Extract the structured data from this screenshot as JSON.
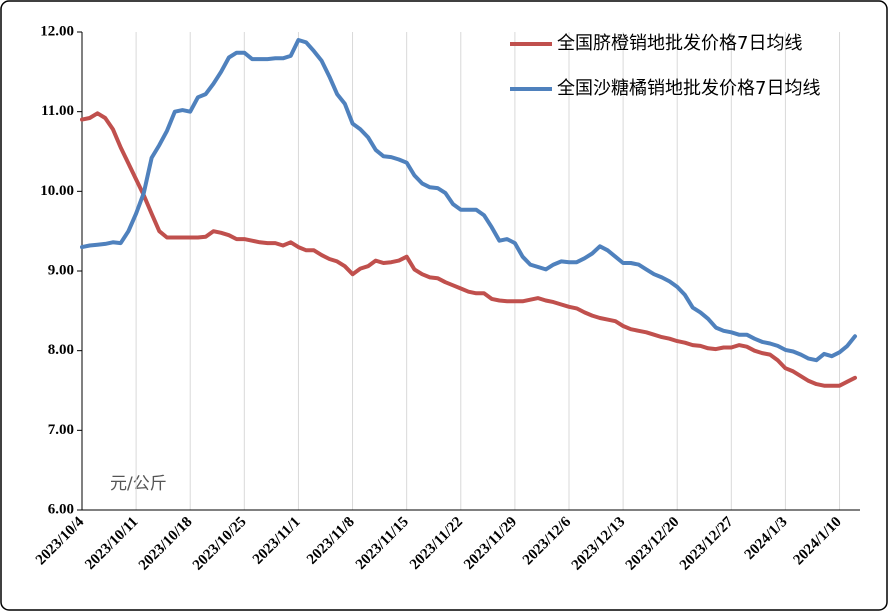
{
  "chart_data": {
    "type": "line",
    "y_annotation": "元/公斤",
    "categories": [
      "2023/10/4",
      null,
      null,
      null,
      null,
      null,
      null,
      "2023/10/11",
      null,
      null,
      null,
      null,
      null,
      null,
      "2023/10/18",
      null,
      null,
      null,
      null,
      null,
      null,
      "2023/10/25",
      null,
      null,
      null,
      null,
      null,
      null,
      "2023/11/1",
      null,
      null,
      null,
      null,
      null,
      null,
      "2023/11/8",
      null,
      null,
      null,
      null,
      null,
      null,
      "2023/11/15",
      null,
      null,
      null,
      null,
      null,
      null,
      "2023/11/22",
      null,
      null,
      null,
      null,
      null,
      null,
      "2023/11/29",
      null,
      null,
      null,
      null,
      null,
      null,
      "2023/12/6",
      null,
      null,
      null,
      null,
      null,
      null,
      "2023/12/13",
      null,
      null,
      null,
      null,
      null,
      null,
      "2023/12/20",
      null,
      null,
      null,
      null,
      null,
      null,
      "2023/12/27",
      null,
      null,
      null,
      null,
      null,
      null,
      "2024/1/3",
      null,
      null,
      null,
      null,
      null,
      null,
      "2024/1/10",
      null,
      null
    ],
    "series": [
      {
        "name": "全国脐橙销地批发价格7日均线",
        "color": "#c0504d",
        "values": [
          10.9,
          10.92,
          10.98,
          10.92,
          10.78,
          10.55,
          10.35,
          10.15,
          9.95,
          9.72,
          9.5,
          9.42,
          9.42,
          9.42,
          9.42,
          9.42,
          9.43,
          9.5,
          9.48,
          9.45,
          9.4,
          9.4,
          9.38,
          9.36,
          9.35,
          9.35,
          9.32,
          9.36,
          9.3,
          9.26,
          9.26,
          9.2,
          9.15,
          9.12,
          9.06,
          8.96,
          9.03,
          9.06,
          9.13,
          9.1,
          9.11,
          9.13,
          9.18,
          9.02,
          8.96,
          8.92,
          8.91,
          8.86,
          8.82,
          8.78,
          8.74,
          8.72,
          8.72,
          8.65,
          8.63,
          8.62,
          8.62,
          8.62,
          8.64,
          8.66,
          8.63,
          8.61,
          8.58,
          8.55,
          8.53,
          8.48,
          8.44,
          8.41,
          8.39,
          8.37,
          8.31,
          8.27,
          8.25,
          8.23,
          8.2,
          8.17,
          8.15,
          8.12,
          8.1,
          8.07,
          8.06,
          8.03,
          8.02,
          8.04,
          8.04,
          8.07,
          8.05,
          8.0,
          7.97,
          7.95,
          7.88,
          7.78,
          7.74,
          7.68,
          7.62,
          7.58,
          7.56,
          7.56,
          7.56,
          7.61,
          7.66
        ]
      },
      {
        "name": "全国沙糖橘销地批发价格7日均线",
        "color": "#4f81bd",
        "values": [
          9.3,
          9.32,
          9.33,
          9.34,
          9.36,
          9.35,
          9.5,
          9.72,
          9.98,
          10.42,
          10.58,
          10.76,
          11.0,
          11.02,
          11.0,
          11.18,
          11.22,
          11.35,
          11.5,
          11.68,
          11.74,
          11.74,
          11.66,
          11.66,
          11.66,
          11.67,
          11.67,
          11.7,
          11.9,
          11.87,
          11.76,
          11.64,
          11.44,
          11.22,
          11.1,
          10.85,
          10.78,
          10.68,
          10.52,
          10.44,
          10.43,
          10.4,
          10.36,
          10.2,
          10.1,
          10.05,
          10.04,
          9.98,
          9.84,
          9.77,
          9.77,
          9.77,
          9.7,
          9.55,
          9.38,
          9.4,
          9.35,
          9.18,
          9.08,
          9.05,
          9.02,
          9.08,
          9.12,
          9.11,
          9.11,
          9.16,
          9.22,
          9.31,
          9.26,
          9.18,
          9.1,
          9.1,
          9.08,
          9.02,
          8.96,
          8.92,
          8.87,
          8.8,
          8.7,
          8.54,
          8.48,
          8.4,
          8.29,
          8.25,
          8.23,
          8.2,
          8.2,
          8.15,
          8.11,
          8.09,
          8.06,
          8.01,
          7.99,
          7.95,
          7.9,
          7.88,
          7.96,
          7.93,
          7.98,
          8.06,
          8.18
        ]
      }
    ],
    "ylim": [
      6,
      12
    ],
    "yticks": [
      {
        "value": 6,
        "label": "6.00"
      },
      {
        "value": 7,
        "label": "7.00"
      },
      {
        "value": 8,
        "label": "8.00"
      },
      {
        "value": 9,
        "label": "9.00"
      },
      {
        "value": 10,
        "label": "10.00"
      },
      {
        "value": 11,
        "label": "11.00"
      },
      {
        "value": 12,
        "label": "12.00"
      }
    ],
    "grid": true,
    "legend": "top-right"
  }
}
